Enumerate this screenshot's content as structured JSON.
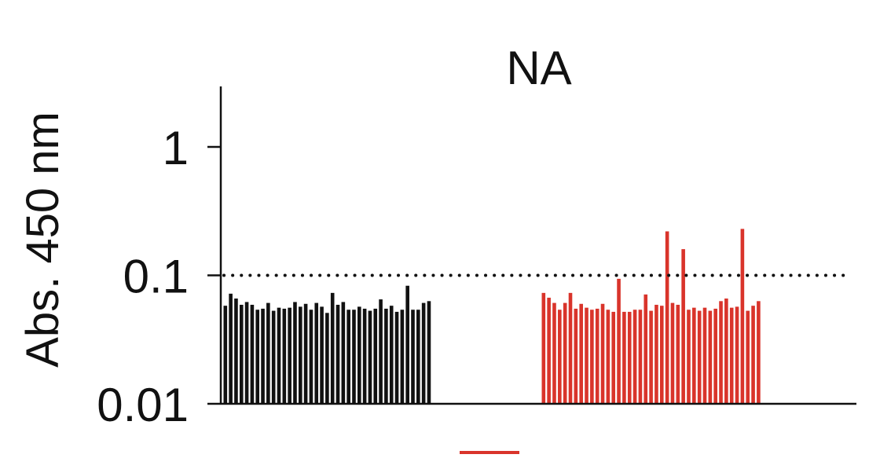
{
  "chart_data": {
    "type": "bar",
    "title": "NA",
    "ylabel": "Abs.  450 nm",
    "xlabel": "",
    "y_scale": "log",
    "ylim": [
      0.01,
      2.7
    ],
    "yticks": [
      {
        "value": 1,
        "label": "1"
      },
      {
        "value": 0.1,
        "label": "0.1"
      },
      {
        "value": 0.01,
        "label": "0.01"
      }
    ],
    "grid": false,
    "reference_line": {
      "value": 0.1,
      "style": "dotted"
    },
    "colors": {
      "group1": "#111111",
      "group2": "#d9342b"
    },
    "series": [
      {
        "values": [
          0.058,
          0.072,
          0.066,
          0.059,
          0.062,
          0.059,
          0.054,
          0.055,
          0.061,
          0.053,
          0.056,
          0.055,
          0.056,
          0.062,
          0.057,
          0.06,
          0.054,
          0.061,
          0.057,
          0.051,
          0.073,
          0.059,
          0.062,
          0.054,
          0.054,
          0.057,
          0.055,
          0.053,
          0.055,
          0.065,
          0.055,
          0.058,
          0.052,
          0.054,
          0.083,
          0.054,
          0.054,
          0.061,
          0.063
        ]
      },
      {
        "values": [
          0.073,
          0.067,
          0.061,
          0.054,
          0.061,
          0.073,
          0.055,
          0.06,
          0.056,
          0.054,
          0.055,
          0.06,
          0.054,
          0.052,
          0.094,
          0.052,
          0.052,
          0.054,
          0.054,
          0.071,
          0.053,
          0.059,
          0.058,
          0.22,
          0.061,
          0.059,
          0.16,
          0.054,
          0.056,
          0.053,
          0.056,
          0.053,
          0.055,
          0.063,
          0.066,
          0.056,
          0.057,
          0.23,
          0.053,
          0.058,
          0.063
        ]
      }
    ]
  }
}
